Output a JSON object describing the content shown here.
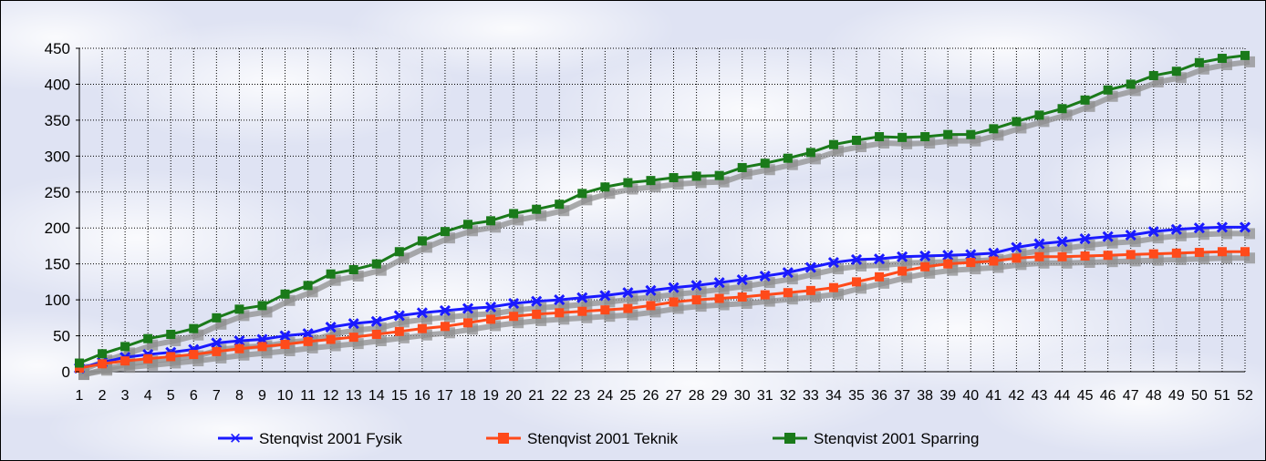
{
  "chart_data": {
    "type": "line",
    "title": "",
    "xlabel": "",
    "ylabel": "",
    "ylim": [
      0,
      450
    ],
    "yticks": [
      0,
      50,
      100,
      150,
      200,
      250,
      300,
      350,
      400,
      450
    ],
    "grid": true,
    "legend_position": "bottom",
    "categories": [
      "1",
      "2",
      "3",
      "4",
      "5",
      "6",
      "7",
      "8",
      "9",
      "10",
      "11",
      "12",
      "13",
      "14",
      "15",
      "16",
      "17",
      "18",
      "19",
      "20",
      "21",
      "22",
      "23",
      "24",
      "25",
      "26",
      "27",
      "28",
      "29",
      "30",
      "31",
      "32",
      "33",
      "34",
      "35",
      "36",
      "37",
      "38",
      "39",
      "40",
      "41",
      "42",
      "43",
      "44",
      "45",
      "46",
      "47",
      "48",
      "49",
      "50",
      "51",
      "52"
    ],
    "series": [
      {
        "name": "Stenqvist 2001 Fysik",
        "color": "#1a1aff",
        "values": [
          5,
          13,
          20,
          24,
          27,
          31,
          40,
          43,
          45,
          50,
          53,
          62,
          67,
          70,
          78,
          82,
          85,
          88,
          90,
          95,
          98,
          100,
          103,
          106,
          110,
          113,
          117,
          120,
          124,
          128,
          133,
          138,
          145,
          152,
          156,
          157,
          160,
          161,
          162,
          163,
          165,
          173,
          178,
          181,
          185,
          188,
          190,
          195,
          198,
          200,
          201,
          201
        ]
      },
      {
        "name": "Stenqvist 2001 Teknik",
        "color": "#ff4a1a",
        "values": [
          5,
          11,
          15,
          18,
          21,
          24,
          28,
          32,
          35,
          38,
          42,
          45,
          48,
          52,
          56,
          60,
          63,
          68,
          73,
          77,
          80,
          82,
          84,
          86,
          88,
          92,
          97,
          100,
          102,
          104,
          107,
          110,
          113,
          117,
          125,
          132,
          140,
          146,
          150,
          152,
          154,
          158,
          160,
          160,
          161,
          162,
          163,
          164,
          165,
          166,
          167,
          167
        ]
      },
      {
        "name": "Stenqvist 2001 Sparring",
        "color": "#1a7a1a",
        "values": [
          12,
          25,
          35,
          46,
          52,
          60,
          75,
          87,
          92,
          108,
          120,
          136,
          142,
          150,
          167,
          182,
          195,
          205,
          210,
          220,
          226,
          233,
          248,
          257,
          263,
          266,
          270,
          272,
          273,
          284,
          290,
          297,
          305,
          316,
          322,
          327,
          326,
          327,
          330,
          330,
          338,
          348,
          357,
          366,
          378,
          392,
          400,
          412,
          418,
          430,
          436,
          440
        ]
      }
    ]
  },
  "legend": {
    "fysik_label": "Stenqvist 2001 Fysik",
    "teknik_label": "Stenqvist 2001 Teknik",
    "sparring_label": "Stenqvist 2001 Sparring"
  }
}
